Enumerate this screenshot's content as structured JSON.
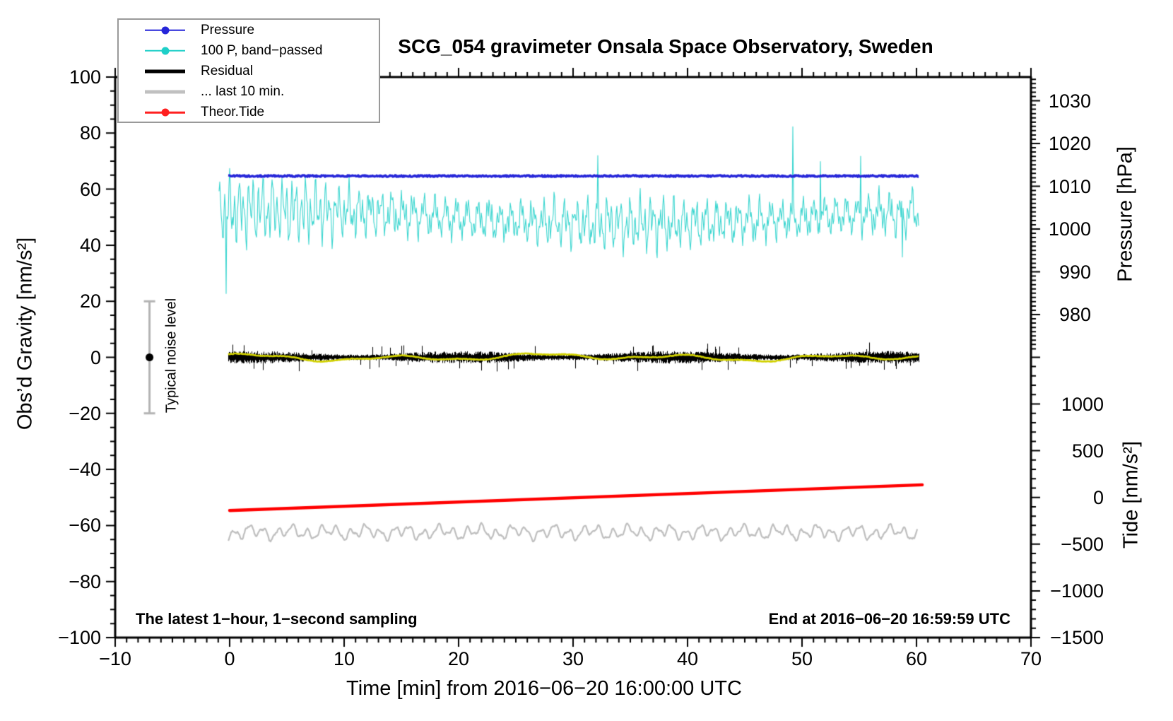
{
  "title": "SCG_054 gravimeter Onsala Space Observatory, Sweden",
  "axes": {
    "x": {
      "label": "Time [min] from 2016−06−20 16:00:00 UTC",
      "range": [
        -10,
        70
      ],
      "minor_step": 1,
      "ticks": [
        {
          "v": -10,
          "label": "−10"
        },
        {
          "v": 0,
          "label": "0"
        },
        {
          "v": 10,
          "label": "10"
        },
        {
          "v": 20,
          "label": "20"
        },
        {
          "v": 30,
          "label": "30"
        },
        {
          "v": 40,
          "label": "40"
        },
        {
          "v": 50,
          "label": "50"
        },
        {
          "v": 60,
          "label": "60"
        },
        {
          "v": 70,
          "label": "70"
        }
      ]
    },
    "y_left": {
      "label": "Obs’d Gravity [nm/s²]",
      "range": [
        -100,
        100
      ],
      "minor_step": 5,
      "ticks": [
        {
          "v": 100,
          "label": "100"
        },
        {
          "v": 80,
          "label": "80"
        },
        {
          "v": 60,
          "label": "60"
        },
        {
          "v": 40,
          "label": "40"
        },
        {
          "v": 20,
          "label": "20"
        },
        {
          "v": 0,
          "label": "0"
        },
        {
          "v": -20,
          "label": "−20"
        },
        {
          "v": -40,
          "label": "−40"
        },
        {
          "v": -60,
          "label": "−60"
        },
        {
          "v": -80,
          "label": "−80"
        },
        {
          "v": -100,
          "label": "−100"
        }
      ]
    },
    "y_right_pressure": {
      "label": "Pressure [hPa]",
      "minor_step": 1,
      "ticks": [
        {
          "v": 1030,
          "label": "1030"
        },
        {
          "v": 1020,
          "label": "1020"
        },
        {
          "v": 1010,
          "label": "1010"
        },
        {
          "v": 1000,
          "label": "1000"
        },
        {
          "v": 990,
          "label": "990"
        },
        {
          "v": 980,
          "label": "980"
        }
      ]
    },
    "y_right_tide": {
      "label": "Tide [nm/s²]",
      "minor_step": 100,
      "ticks": [
        {
          "v": 1000,
          "label": "1000"
        },
        {
          "v": 500,
          "label": "500"
        },
        {
          "v": 0,
          "label": "0"
        },
        {
          "v": -500,
          "label": "−500"
        },
        {
          "v": -1000,
          "label": "−1000"
        },
        {
          "v": -1500,
          "label": "−1500"
        }
      ]
    }
  },
  "legend": {
    "entries": [
      {
        "key": "pressure",
        "label": "Pressure",
        "color": "#2626d9",
        "thick": false,
        "marker": true
      },
      {
        "key": "band-passed-pressure",
        "label": "100 P, band−passed",
        "color": "#1fcfc8",
        "thick": false,
        "marker": true
      },
      {
        "key": "residual",
        "label": "Residual",
        "color": "#000000",
        "thick": true,
        "marker": false
      },
      {
        "key": "residual-last-10-min",
        "label": "... last 10 min.",
        "color": "#c0c0c0",
        "thick": true,
        "marker": false
      },
      {
        "key": "theor-tide",
        "label": "Theor.Tide",
        "color": "#ff2020",
        "thick": false,
        "marker": true
      }
    ]
  },
  "annotations": {
    "sampling_note": "The latest 1−hour, 1−second sampling",
    "end_time_note": "End at 2016−06−20 16:59:59 UTC",
    "noise_label": "Typical noise level"
  },
  "chart_data": {
    "type": "line",
    "title": "SCG_054 gravimeter Onsala Space Observatory, Sweden",
    "xlabel": "Time [min] from 2016−06−20 16:00:00 UTC",
    "x_axis_range": [
      -10,
      70
    ],
    "x_data_range_min": [
      0,
      60.2
    ],
    "left_axis": {
      "label": "Obs’d Gravity [nm/s²]",
      "range": [
        -100,
        100
      ]
    },
    "right_axis_pressure": {
      "label": "Pressure [hPa]",
      "tick_range": [
        980,
        1030
      ]
    },
    "right_axis_tide": {
      "label": "Tide [nm/s²]",
      "tick_range": [
        -1500,
        1000
      ]
    },
    "grid": false,
    "legend_position": "top-left",
    "series": [
      {
        "name": "Pressure",
        "axis": "pressure_hPa",
        "color": "#2626d9",
        "mean_hPa": 1012.2,
        "peak_to_peak_hPa": 0.4,
        "left_axis_equivalent": 64.5,
        "shape": "flat noisy line"
      },
      {
        "name": "100 P, band−passed",
        "axis": "left_gravity",
        "color": "#3bd6d0",
        "mean": 50,
        "typical_band": [
          34,
          66
        ],
        "extreme_band": [
          19,
          81
        ],
        "shape": "high-frequency band-passed noise"
      },
      {
        "name": "Residual",
        "axis": "left_gravity",
        "color": "#000000",
        "mean": 0,
        "typical_band": [
          -2.5,
          2.5
        ],
        "extreme_band": [
          -5.5,
          5.5
        ],
        "shape": "dense 1-second noise band"
      },
      {
        "name": "Residual smoothed overlay",
        "axis": "left_gravity",
        "color": "#d2d200",
        "mean": 0,
        "typical_band": [
          -1.5,
          1.5
        ],
        "shape": "slow wander over residual"
      },
      {
        "name": "... last 10 min.",
        "axis": "left_gravity",
        "color": "#bfbfbf",
        "mean": -62.5,
        "typical_band": [
          -66.5,
          -58.5
        ],
        "shape": "wavy smoothed noise"
      },
      {
        "name": "Theor.Tide",
        "axis": "tide_nm_s2",
        "color": "#ff0000",
        "points": [
          [
            0,
            -140
          ],
          [
            60.5,
            135
          ]
        ],
        "left_axis_equivalent_points": [
          [
            0,
            -54.9
          ],
          [
            60.5,
            -45.9
          ]
        ],
        "shape": "straight rising line"
      }
    ],
    "noise_annotation": {
      "x_min": -7,
      "gravity_center": 0,
      "gravity_half_range": 20,
      "bar_color": "#b4b4b4",
      "dot_color": "#000000"
    }
  }
}
